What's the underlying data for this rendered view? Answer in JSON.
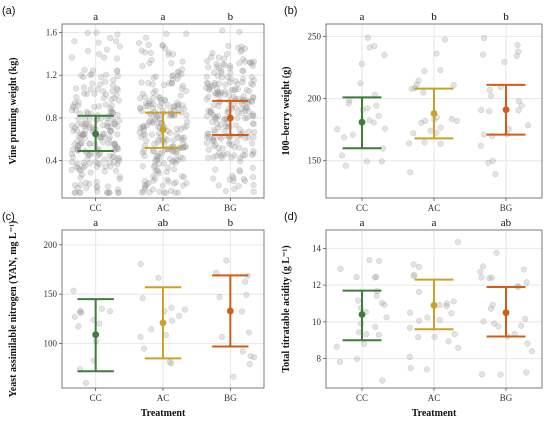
{
  "chart_data": [
    {
      "type": "scatter",
      "panel_label": "(a)",
      "categories": [
        "CC",
        "AC",
        "BG"
      ],
      "ylabel": "Vine pruning weight (kg)",
      "xlabel": "",
      "ylim": [
        0.05,
        1.68
      ],
      "yticks": [
        0.4,
        0.8,
        1.2,
        1.6
      ],
      "grid": true,
      "significance": [
        "a",
        "a",
        "b"
      ],
      "group_colors": [
        "#3e7d3a",
        "#c9a227",
        "#d15d14"
      ],
      "summary": [
        {
          "category": "CC",
          "mean": 0.65,
          "lower": 0.49,
          "upper": 0.82
        },
        {
          "category": "AC",
          "mean": 0.69,
          "lower": 0.52,
          "upper": 0.85
        },
        {
          "category": "BG",
          "mean": 0.8,
          "lower": 0.64,
          "upper": 0.96
        }
      ],
      "points": {
        "count_per_group": 220,
        "range": [
          0.1,
          1.62
        ]
      }
    },
    {
      "type": "scatter",
      "panel_label": "(b)",
      "categories": [
        "CC",
        "AC",
        "BG"
      ],
      "ylabel": "100–berry weight (g)",
      "xlabel": "",
      "ylim": [
        120,
        260
      ],
      "yticks": [
        150,
        200,
        250
      ],
      "grid": true,
      "significance": [
        "a",
        "b",
        "b"
      ],
      "group_colors": [
        "#3e7d3a",
        "#c9a227",
        "#d15d14"
      ],
      "summary": [
        {
          "category": "CC",
          "mean": 181,
          "lower": 160,
          "upper": 201
        },
        {
          "category": "AC",
          "mean": 188,
          "lower": 168,
          "upper": 208
        },
        {
          "category": "BG",
          "mean": 191,
          "lower": 171,
          "upper": 211
        }
      ],
      "points": {
        "count_per_group": 24,
        "range": [
          125,
          252
        ]
      }
    },
    {
      "type": "scatter",
      "panel_label": "(c)",
      "categories": [
        "CC",
        "AC",
        "BG"
      ],
      "ylabel": "Yeast assimilable nitrogen (YAN, mg L⁻¹)",
      "xlabel": "Treatment",
      "ylim": [
        55,
        215
      ],
      "yticks": [
        100,
        150,
        200
      ],
      "grid": true,
      "significance": [
        "a",
        "ab",
        "b"
      ],
      "group_colors": [
        "#3e7d3a",
        "#c9a227",
        "#d15d14"
      ],
      "summary": [
        {
          "category": "CC",
          "mean": 109,
          "lower": 72,
          "upper": 145
        },
        {
          "category": "AC",
          "mean": 121,
          "lower": 85,
          "upper": 157
        },
        {
          "category": "BG",
          "mean": 133,
          "lower": 97,
          "upper": 169
        }
      ],
      "points": {
        "count_per_group": 14,
        "range": [
          60,
          205
        ]
      }
    },
    {
      "type": "scatter",
      "panel_label": "(d)",
      "categories": [
        "CC",
        "AC",
        "BG"
      ],
      "ylabel": "Total titratable acidity (g L⁻¹)",
      "xlabel": "Treatment",
      "ylim": [
        6.4,
        15.0
      ],
      "yticks": [
        8,
        10,
        12,
        14
      ],
      "grid": true,
      "significance": [
        "a",
        "a",
        "ab"
      ],
      "group_colors": [
        "#3e7d3a",
        "#c9a227",
        "#d15d14"
      ],
      "summary": [
        {
          "category": "CC",
          "mean": 10.4,
          "lower": 9.0,
          "upper": 11.7
        },
        {
          "category": "AC",
          "mean": 10.9,
          "lower": 9.6,
          "upper": 12.3
        },
        {
          "category": "BG",
          "mean": 10.5,
          "lower": 9.2,
          "upper": 11.9
        }
      ],
      "points": {
        "count_per_group": 24,
        "range": [
          6.8,
          14.6
        ]
      }
    }
  ]
}
